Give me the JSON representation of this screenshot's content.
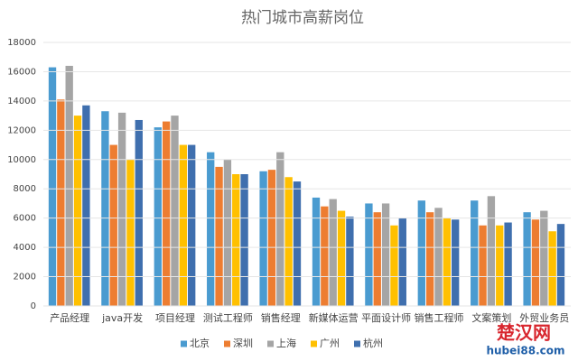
{
  "chart_data": {
    "type": "bar",
    "title": "热门城市高薪岗位",
    "categories": [
      "产品经理",
      "java开发",
      "项目经理",
      "测试工程师",
      "销售经理",
      "新媒体运营",
      "平面设计师",
      "销售工程师",
      "文案策划",
      "外贸业务员"
    ],
    "series": [
      {
        "name": "北京",
        "color": "#4a9bd0",
        "values": [
          16300,
          13300,
          12200,
          10500,
          9200,
          7400,
          7000,
          7200,
          7200,
          6400
        ]
      },
      {
        "name": "深圳",
        "color": "#ed7d31",
        "values": [
          14100,
          11000,
          12600,
          9500,
          9300,
          6800,
          6400,
          6400,
          5500,
          5900
        ]
      },
      {
        "name": "上海",
        "color": "#a5a5a5",
        "values": [
          16400,
          13200,
          13000,
          10000,
          10500,
          7300,
          7000,
          6700,
          7500,
          6500
        ]
      },
      {
        "name": "广州",
        "color": "#ffc000",
        "values": [
          13000,
          10000,
          11000,
          9000,
          8800,
          6500,
          5500,
          6000,
          5500,
          5100
        ]
      },
      {
        "name": "杭州",
        "color": "#3f6fae",
        "values": [
          13700,
          12700,
          11000,
          9000,
          8500,
          6100,
          6000,
          5900,
          5700,
          5600
        ]
      }
    ],
    "ylim": [
      0,
      18000
    ],
    "yticks": [
      0,
      2000,
      4000,
      6000,
      8000,
      10000,
      12000,
      14000,
      16000,
      18000
    ],
    "grid": true,
    "legend": "bottom"
  },
  "watermark": {
    "name": "楚汉网",
    "url": "hubei88.com"
  }
}
